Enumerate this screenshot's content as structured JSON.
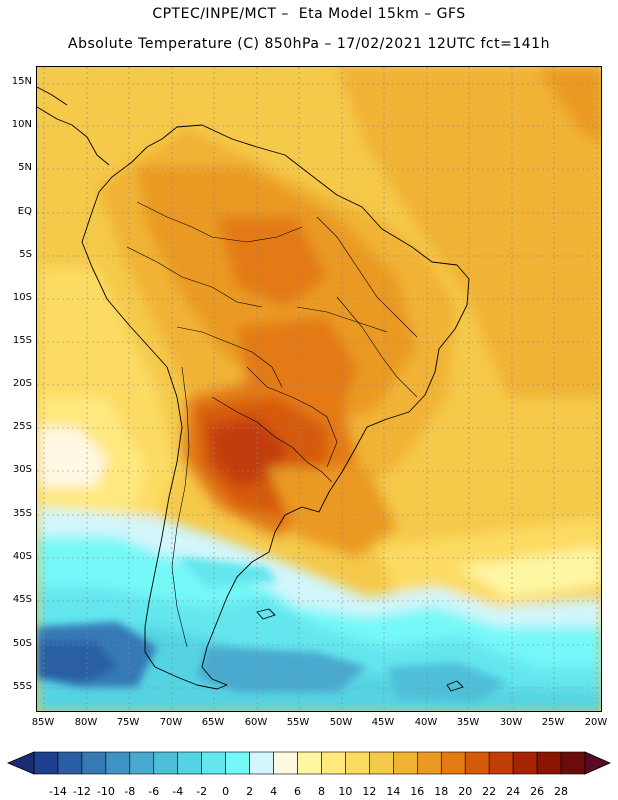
{
  "header": {
    "line1": "CPTEC/INPE/MCT –  Eta Model 15km – GFS",
    "line2": "Absolute Temperature (C) 850hPa – 17/02/2021 12UTC fct=141h"
  },
  "axes": {
    "lat_labels": [
      "15N",
      "10N",
      "5N",
      "EQ",
      "5S",
      "10S",
      "15S",
      "20S",
      "25S",
      "30S",
      "35S",
      "40S",
      "45S",
      "50S",
      "55S"
    ],
    "lon_labels": [
      "85W",
      "80W",
      "75W",
      "70W",
      "65W",
      "60W",
      "55W",
      "50W",
      "45W",
      "40W",
      "35W",
      "30W",
      "25W",
      "20W"
    ]
  },
  "colorbar": {
    "colors": [
      "#1f3f8f",
      "#2a5ea3",
      "#3579b5",
      "#3f93c4",
      "#49a9cf",
      "#4fbfd9",
      "#55d3e3",
      "#63e6ee",
      "#75f8f8",
      "#d2f6fb",
      "#fff8e3",
      "#fff6a4",
      "#ffe87e",
      "#fcdb62",
      "#f5c94a",
      "#f1b334",
      "#ea9a24",
      "#e37a14",
      "#d65a0c",
      "#c23d07",
      "#a62303",
      "#8a1402",
      "#6b0c0c"
    ],
    "low_arrow": "#1a2d72",
    "high_arrow": "#5a0a24",
    "labels": [
      "-14",
      "-12",
      "-10",
      "-8",
      "-6",
      "-4",
      "-2",
      "0",
      "2",
      "4",
      "6",
      "8",
      "10",
      "12",
      "14",
      "16",
      "18",
      "20",
      "22",
      "24",
      "26",
      "28"
    ]
  }
}
